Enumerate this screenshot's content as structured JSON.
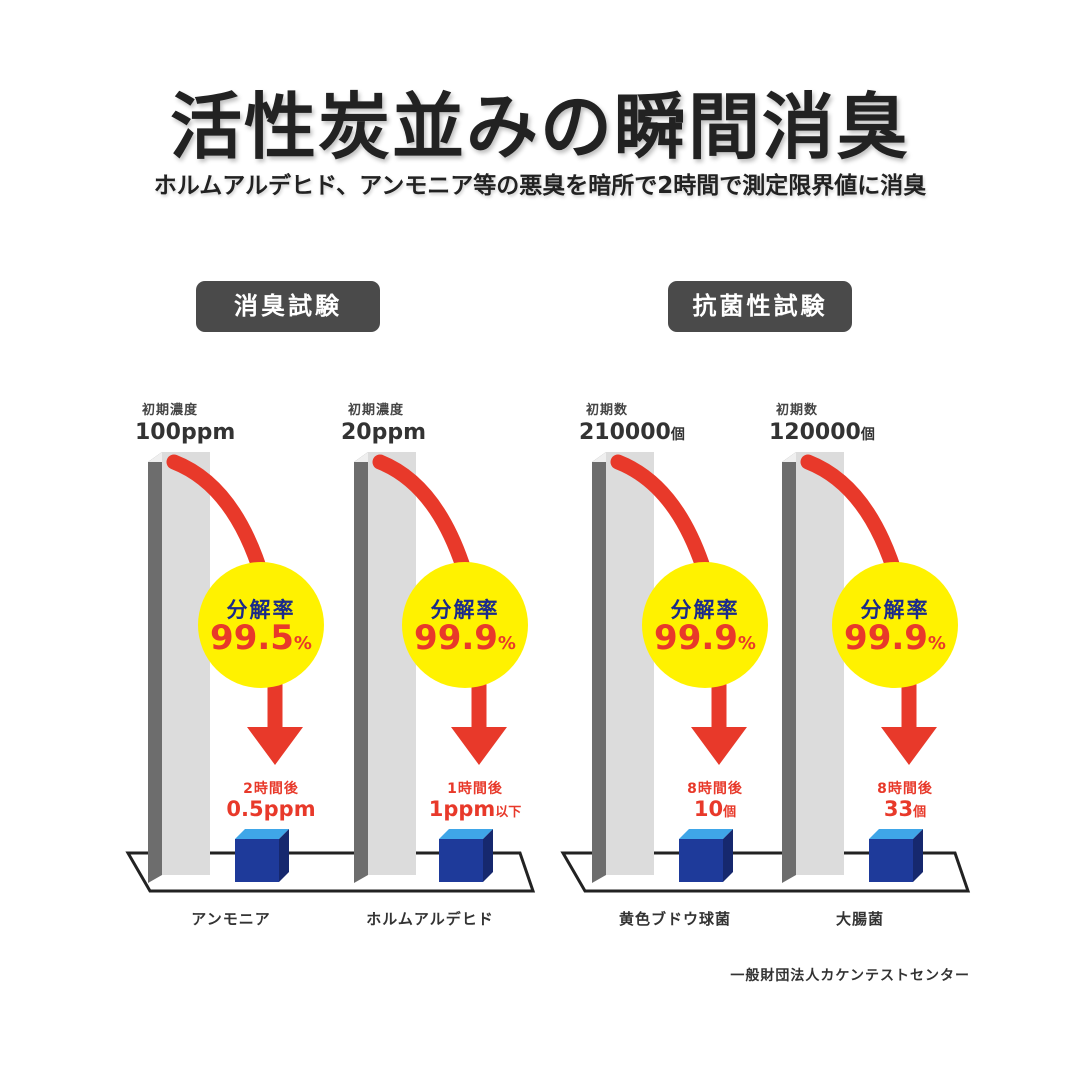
{
  "title": "活性炭並みの瞬間消臭",
  "subtitle": "ホルムアルデヒド、アンモニア等の悪臭を暗所で2時間で測定限界値に消臭",
  "source": "一般財団法人カケンテストセンター",
  "colors": {
    "arrow": "#e8392a",
    "circle": "#fff200",
    "cube_front": "#1e3a9a",
    "cube_top": "#3fa6e8",
    "badge": "#4a4a4a"
  },
  "chart_data": {
    "type": "bar",
    "groups": [
      {
        "label": "消臭試験",
        "items": [
          {
            "category": "アンモニア",
            "initial_label": "初期濃度",
            "initial_value": "100",
            "initial_unit": "ppm",
            "rate_label": "分解率",
            "rate": "99.5",
            "rate_unit": "%",
            "after_label": "2時間後",
            "after_value": "0.5",
            "after_unit": "ppm",
            "after_suffix": ""
          },
          {
            "category": "ホルムアルデヒド",
            "initial_label": "初期濃度",
            "initial_value": "20",
            "initial_unit": "ppm",
            "rate_label": "分解率",
            "rate": "99.9",
            "rate_unit": "%",
            "after_label": "1時間後",
            "after_value": "1",
            "after_unit": "ppm",
            "after_suffix": "以下"
          }
        ]
      },
      {
        "label": "抗菌性試験",
        "items": [
          {
            "category": "黄色ブドウ球菌",
            "initial_label": "初期数",
            "initial_value": "210000",
            "initial_unit": "個",
            "rate_label": "分解率",
            "rate": "99.9",
            "rate_unit": "%",
            "after_label": "8時間後",
            "after_value": "10",
            "after_unit": "個",
            "after_suffix": ""
          },
          {
            "category": "大腸菌",
            "initial_label": "初期数",
            "initial_value": "120000",
            "initial_unit": "個",
            "rate_label": "分解率",
            "rate": "99.9",
            "rate_unit": "%",
            "after_label": "8時間後",
            "after_value": "33",
            "after_unit": "個",
            "after_suffix": ""
          }
        ]
      }
    ]
  }
}
